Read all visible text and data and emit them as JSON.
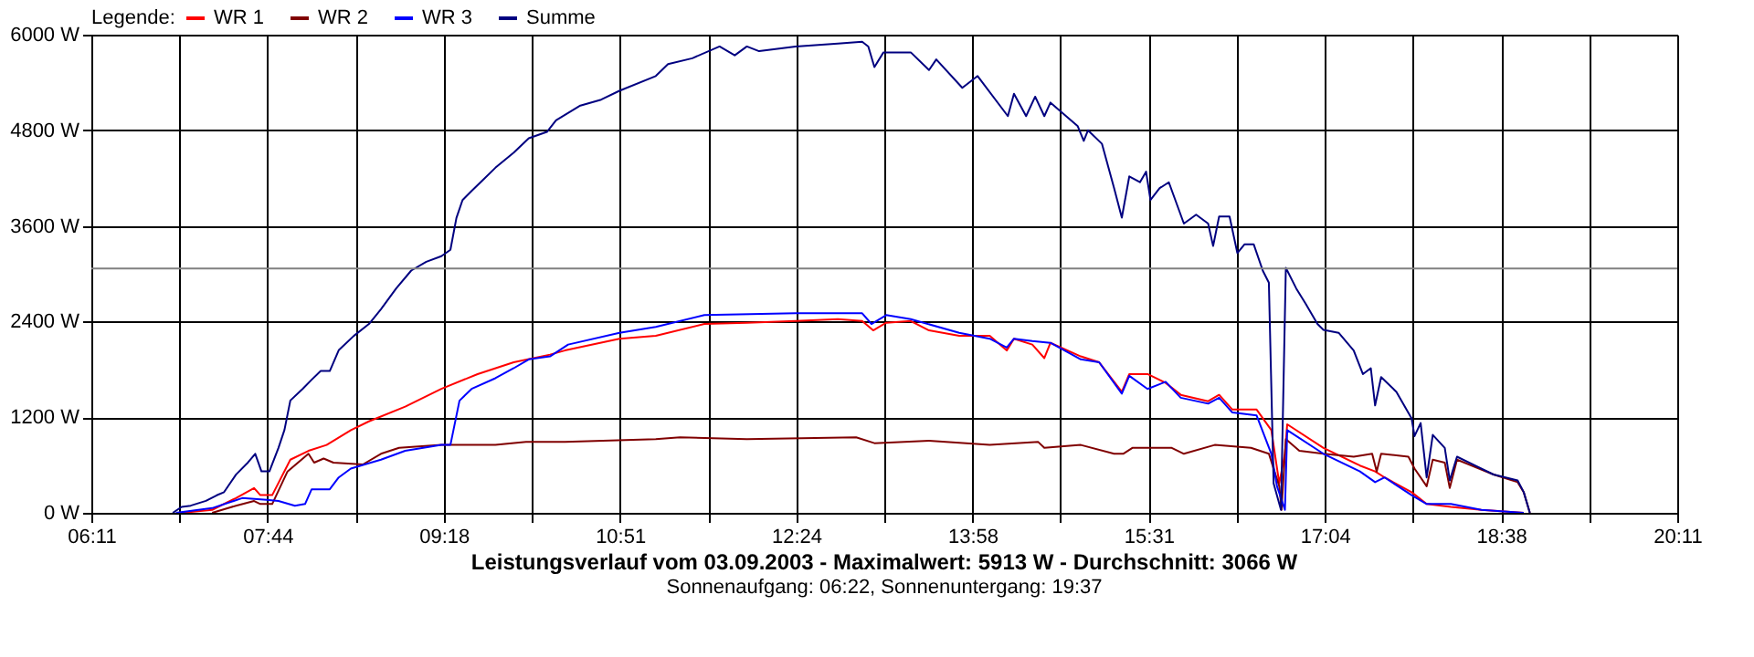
{
  "chart_data": {
    "type": "line",
    "title": "Leistungsverlauf vom 03.09.2003 - Maximalwert: 5913 W - Durchschnitt: 3066 W",
    "subtitle": "Sonnenaufgang: 06:22, Sonnenuntergang: 19:37",
    "legend_title": "Legende:",
    "legend": "top left",
    "grid": true,
    "marker": "none",
    "line_style": "solid",
    "xlim": [
      6.1833,
      20.1833
    ],
    "xticks": [
      {
        "value": 6.1833,
        "label": "06:11"
      },
      {
        "value": 6.9611,
        "label": null
      },
      {
        "value": 7.7389,
        "label": "07:44"
      },
      {
        "value": 8.5167,
        "label": null
      },
      {
        "value": 9.2944,
        "label": "09:18"
      },
      {
        "value": 10.0722,
        "label": null
      },
      {
        "value": 10.85,
        "label": "10:51"
      },
      {
        "value": 11.6278,
        "label": null
      },
      {
        "value": 12.4056,
        "label": "12:24"
      },
      {
        "value": 13.1833,
        "label": null
      },
      {
        "value": 13.9611,
        "label": "13:58"
      },
      {
        "value": 14.7389,
        "label": null
      },
      {
        "value": 15.5167,
        "label": "15:31"
      },
      {
        "value": 16.2944,
        "label": null
      },
      {
        "value": 17.0722,
        "label": "17:04"
      },
      {
        "value": 17.85,
        "label": null
      },
      {
        "value": 18.6278,
        "label": "18:38"
      },
      {
        "value": 19.4056,
        "label": null
      },
      {
        "value": 20.1833,
        "label": "20:11"
      }
    ],
    "ylim": [
      0,
      6000
    ],
    "yticks": [
      {
        "value": 0,
        "label": "0 W"
      },
      {
        "value": 1200,
        "label": "1200 W"
      },
      {
        "value": 2400,
        "label": "2400 W"
      },
      {
        "value": 3600,
        "label": "3600 W"
      },
      {
        "value": 4800,
        "label": "4800 W"
      },
      {
        "value": 6000,
        "label": "6000 W"
      }
    ],
    "ref_lines": [
      {
        "axis": "y",
        "value": 3066,
        "color": "#808080"
      }
    ],
    "series": [
      {
        "name": "WR 1",
        "color": "#ff0000",
        "x": [
          6.98,
          7.25,
          7.46,
          7.62,
          7.675,
          7.78,
          7.94,
          8.1,
          8.26,
          8.475,
          8.634,
          8.954,
          9.273,
          9.593,
          9.912,
          10.232,
          10.363,
          10.845,
          11.166,
          11.595,
          11.97,
          12.4,
          12.774,
          12.988,
          13.085,
          13.2,
          13.417,
          13.578,
          13.845,
          14.114,
          14.264,
          14.328,
          14.49,
          14.596,
          14.65,
          14.918,
          15.08,
          15.28,
          15.346,
          15.507,
          15.667,
          15.8,
          16.042,
          16.139,
          16.256,
          16.47,
          16.6,
          16.67,
          16.72,
          16.74,
          17.06,
          17.382,
          17.516,
          17.6,
          17.838,
          17.971,
          18.185,
          18.454,
          18.828
        ],
        "values": [
          0,
          37,
          185,
          311,
          222,
          222,
          667,
          778,
          852,
          1037,
          1148,
          1333,
          1555,
          1741,
          1889,
          1985,
          2037,
          2185,
          2222,
          2370,
          2385,
          2407,
          2430,
          2407,
          2289,
          2385,
          2407,
          2289,
          2222,
          2222,
          2037,
          2185,
          2111,
          1941,
          2133,
          1963,
          1889,
          1518,
          1741,
          1741,
          1630,
          1481,
          1400,
          1481,
          1296,
          1296,
          1037,
          370,
          741,
          1111,
          815,
          593,
          519,
          444,
          259,
          111,
          74,
          37,
          0
        ]
      },
      {
        "name": "WR 2",
        "color": "#800000",
        "x": [
          7.25,
          7.46,
          7.62,
          7.675,
          7.78,
          7.915,
          8.1,
          8.15,
          8.234,
          8.32,
          8.58,
          8.74,
          8.9,
          9.273,
          9.75,
          10.02,
          10.363,
          11.166,
          11.38,
          11.97,
          12.935,
          13.096,
          13.578,
          14.114,
          14.542,
          14.596,
          14.918,
          15.212,
          15.292,
          15.373,
          15.667,
          15.721,
          15.828,
          16.1,
          16.42,
          16.578,
          16.67,
          16.69,
          16.728,
          16.847,
          17.06,
          17.327,
          17.49,
          17.53,
          17.569,
          17.81,
          17.864,
          17.971,
          18.025,
          18.131,
          18.175,
          18.239,
          18.561,
          18.774,
          18.828,
          18.882
        ],
        "values": [
          0,
          89,
          148,
          111,
          111,
          519,
          741,
          630,
          681,
          630,
          607,
          741,
          815,
          852,
          852,
          889,
          889,
          926,
          948,
          926,
          948,
          874,
          904,
          852,
          889,
          815,
          852,
          741,
          741,
          815,
          815,
          815,
          741,
          852,
          815,
          741,
          333,
          37,
          926,
          778,
          741,
          704,
          741,
          519,
          741,
          704,
          556,
          333,
          667,
          630,
          311,
          667,
          481,
          385,
          259,
          0
        ]
      },
      {
        "name": "WR 3",
        "color": "#0000ff",
        "x": [
          6.93,
          7.25,
          7.515,
          7.73,
          7.835,
          7.98,
          8.07,
          8.128,
          8.288,
          8.367,
          8.474,
          8.74,
          8.954,
          9.273,
          9.353,
          9.433,
          9.54,
          9.75,
          9.912,
          10.045,
          10.232,
          10.392,
          10.845,
          11.166,
          11.595,
          12.4,
          12.988,
          13.07,
          13.2,
          13.417,
          13.845,
          14.114,
          14.264,
          14.328,
          14.49,
          14.65,
          14.918,
          15.08,
          15.28,
          15.346,
          15.507,
          15.667,
          15.8,
          16.042,
          16.139,
          16.256,
          16.47,
          16.6,
          16.65,
          16.72,
          16.74,
          17.06,
          17.382,
          17.516,
          17.6,
          17.838,
          17.971,
          18.185,
          18.454,
          18.828
        ],
        "values": [
          0,
          59,
          185,
          163,
          148,
          89,
          111,
          296,
          296,
          444,
          556,
          667,
          778,
          852,
          852,
          1407,
          1555,
          1689,
          1815,
          1926,
          1963,
          2111,
          2259,
          2333,
          2481,
          2504,
          2504,
          2370,
          2481,
          2430,
          2259,
          2185,
          2074,
          2185,
          2156,
          2133,
          1926,
          1889,
          1496,
          1719,
          1555,
          1644,
          1444,
          1370,
          1444,
          1259,
          1222,
          741,
          333,
          37,
          1037,
          741,
          519,
          385,
          444,
          222,
          111,
          111,
          37,
          0
        ]
      },
      {
        "name": "Summe",
        "color": "#000080",
        "x": [
          6.902,
          6.98,
          7.06,
          7.195,
          7.29,
          7.355,
          7.46,
          7.565,
          7.63,
          7.685,
          7.755,
          7.835,
          7.888,
          7.94,
          8.048,
          8.128,
          8.208,
          8.288,
          8.367,
          8.5,
          8.634,
          8.74,
          8.874,
          9.007,
          9.14,
          9.273,
          9.353,
          9.406,
          9.46,
          9.54,
          9.646,
          9.75,
          9.912,
          10.045,
          10.205,
          10.285,
          10.5,
          10.684,
          10.845,
          11.166,
          11.274,
          11.488,
          11.729,
          11.863,
          11.97,
          12.078,
          12.4,
          12.774,
          12.988,
          13.042,
          13.096,
          13.176,
          13.417,
          13.578,
          13.642,
          13.872,
          14.007,
          14.274,
          14.328,
          14.435,
          14.515,
          14.596,
          14.65,
          14.891,
          14.944,
          14.981,
          15.105,
          15.212,
          15.28,
          15.346,
          15.44,
          15.494,
          15.533,
          15.614,
          15.695,
          15.828,
          15.936,
          16.042,
          16.086,
          16.139,
          16.231,
          16.3,
          16.364,
          16.444,
          16.525,
          16.578,
          16.62,
          16.685,
          16.728,
          16.82,
          16.9,
          17.007,
          17.06,
          17.194,
          17.327,
          17.408,
          17.478,
          17.516,
          17.569,
          17.704,
          17.838,
          17.864,
          17.918,
          17.971,
          18.025,
          18.131,
          18.175,
          18.239,
          18.561,
          18.774,
          18.828,
          18.882
        ],
        "values": [
          0,
          74,
          90,
          150,
          220,
          260,
          480,
          630,
          740,
          520,
          520,
          815,
          1040,
          1410,
          1555,
          1670,
          1780,
          1780,
          2040,
          2220,
          2370,
          2555,
          2815,
          3040,
          3150,
          3220,
          3300,
          3700,
          3925,
          4040,
          4185,
          4330,
          4520,
          4700,
          4780,
          4925,
          5110,
          5185,
          5296,
          5481,
          5630,
          5704,
          5852,
          5741,
          5852,
          5793,
          5852,
          5889,
          5911,
          5852,
          5593,
          5778,
          5778,
          5556,
          5689,
          5333,
          5481,
          4978,
          5259,
          4978,
          5222,
          4978,
          5148,
          4852,
          4667,
          4800,
          4630,
          4074,
          3704,
          4222,
          4148,
          4281,
          3926,
          4074,
          4148,
          3630,
          3741,
          3630,
          3348,
          3719,
          3719,
          3259,
          3370,
          3370,
          3037,
          2889,
          370,
          37,
          3074,
          2815,
          2630,
          2370,
          2296,
          2259,
          2037,
          1741,
          1815,
          1348,
          1704,
          1518,
          1185,
          963,
          1126,
          444,
          978,
          815,
          407,
          704,
          481,
          407,
          259,
          0
        ]
      }
    ]
  }
}
